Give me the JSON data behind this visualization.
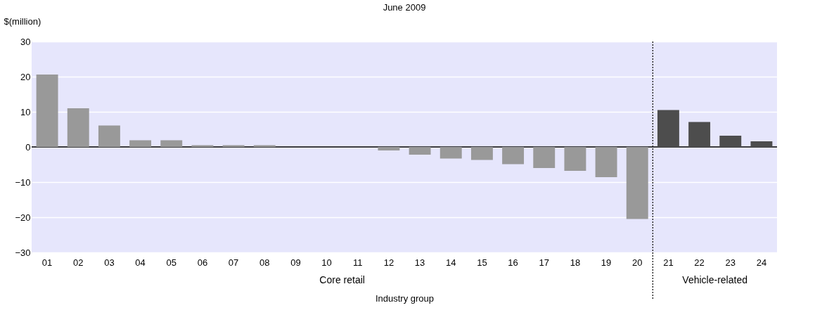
{
  "chart_data": {
    "type": "bar",
    "title": "June 2009",
    "ylabel": "$(million)",
    "xlabel": "Industry group",
    "categories": [
      "01",
      "02",
      "03",
      "04",
      "05",
      "06",
      "07",
      "08",
      "09",
      "10",
      "11",
      "12",
      "13",
      "14",
      "15",
      "16",
      "17",
      "18",
      "19",
      "20",
      "21",
      "22",
      "23",
      "24"
    ],
    "values": [
      20.6,
      11.0,
      6.1,
      1.9,
      1.9,
      0.5,
      0.5,
      0.5,
      0,
      0,
      0,
      -1.0,
      -2.2,
      -3.3,
      -3.7,
      -4.9,
      -6.0,
      -6.8,
      -8.6,
      -20.5,
      10.5,
      7.1,
      3.2,
      1.6
    ],
    "colors": [
      "#999999",
      "#999999",
      "#999999",
      "#999999",
      "#999999",
      "#999999",
      "#999999",
      "#999999",
      "#999999",
      "#999999",
      "#999999",
      "#999999",
      "#999999",
      "#999999",
      "#999999",
      "#999999",
      "#999999",
      "#999999",
      "#999999",
      "#999999",
      "#4d4d4d",
      "#4d4d4d",
      "#4d4d4d",
      "#4d4d4d"
    ],
    "ylim": [
      -30,
      30
    ],
    "yticks": [
      -30,
      -20,
      -10,
      0,
      10,
      20,
      30
    ],
    "grid": "y",
    "ref_lines": [
      {
        "axis": "y",
        "value": 0,
        "color": "#000000",
        "line_style": "solid"
      },
      {
        "axis": "x",
        "value": "21",
        "color": "#000000",
        "line_style": "dotted"
      }
    ],
    "annotations": [
      "Core retail",
      "Vehicle-related"
    ]
  }
}
